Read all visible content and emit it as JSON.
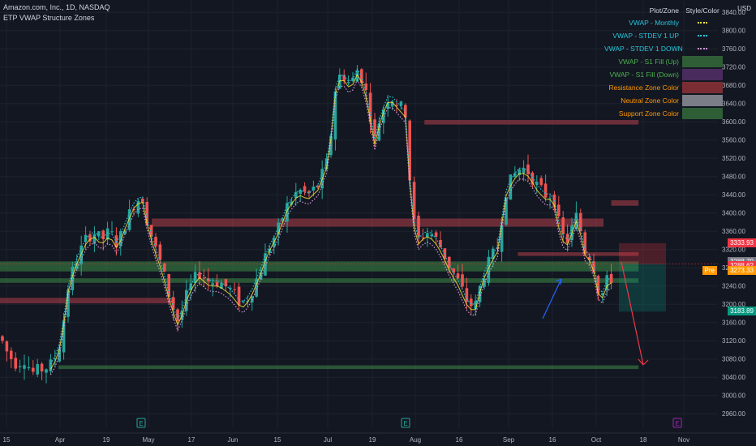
{
  "header": {
    "title": "Amazon.com, Inc., 1D, NASDAQ",
    "indicator": "ETP VWAP Structure Zones",
    "currency": "USD"
  },
  "legend": {
    "col_plot": "Plot/Zone",
    "col_style": "Style/Color",
    "rows": [
      {
        "label": "VWAP - Monthly",
        "color": "#26c6da",
        "swatch": "dots",
        "swatch_color": "#ffeb3b"
      },
      {
        "label": "VWAP - STDEV 1 UP",
        "color": "#26c6da",
        "swatch": "dots",
        "swatch_color": "#26c6da"
      },
      {
        "label": "VWAP - STDEV 1 DOWN",
        "color": "#26c6da",
        "swatch": "dots",
        "swatch_color": "#ce93d8"
      },
      {
        "label": "VWAP - S1 Fill (Up)",
        "color": "#4caf50",
        "swatch": "box",
        "swatch_color": "#2e5d36"
      },
      {
        "label": "VWAP - S1 Fill (Down)",
        "color": "#4caf50",
        "swatch": "box",
        "swatch_color": "#4a2b5e"
      },
      {
        "label": "Resistance Zone Color",
        "color": "#ff9800",
        "swatch": "box",
        "swatch_color": "#7a2e34"
      },
      {
        "label": "Neutral Zone Color",
        "color": "#ff9800",
        "swatch": "box",
        "swatch_color": "#7b7e87"
      },
      {
        "label": "Support Zone Color",
        "color": "#ff9800",
        "swatch": "box",
        "swatch_color": "#2e5d36"
      }
    ]
  },
  "y_axis": {
    "ticks": [
      "3840.00",
      "3800.00",
      "3760.00",
      "3720.00",
      "3680.00",
      "3640.00",
      "3600.00",
      "3560.00",
      "3520.00",
      "3480.00",
      "3440.00",
      "3400.00",
      "3360.00",
      "3320.00",
      "3280.00",
      "3240.00",
      "3200.00",
      "3160.00",
      "3120.00",
      "3080.00",
      "3040.00",
      "3000.00",
      "2960.00"
    ]
  },
  "x_axis": {
    "ticks": [
      "15",
      "Apr",
      "19",
      "May",
      "17",
      "Jun",
      "15",
      "Jul",
      "19",
      "Aug",
      "16",
      "Sep",
      "16",
      "Oct",
      "18",
      "Nov"
    ]
  },
  "price_labels": [
    {
      "text": "3333.93",
      "value": 3333.93,
      "color": "#f23645"
    },
    {
      "text": "3288.70",
      "value": 3288.7,
      "color": "#787b86"
    },
    {
      "text": "3288.62",
      "value": 3288.62,
      "color": "#f23645"
    },
    {
      "text": "3273.33",
      "value": 3273.33,
      "color": "#ff9800"
    },
    {
      "text": "3183.89",
      "value": 3183.89,
      "color": "#089981"
    }
  ],
  "pre_label": "Pre",
  "earnings_markers": [
    "E",
    "E",
    "E"
  ],
  "colors": {
    "background": "#131722",
    "up": "#26a69a",
    "down": "#ef5350",
    "vwap": "#ffeb3b",
    "resistance": "#b2404b",
    "support": "#3d8b45",
    "arrow_blue": "#2962ff",
    "arrow_red": "#f23645"
  },
  "chart_data": {
    "type": "candlestick",
    "ylim": [
      2940,
      3860
    ],
    "zones": [
      {
        "kind": "resistance",
        "x0": 0.545,
        "x1": 0.82,
        "low": 3594,
        "high": 3604
      },
      {
        "kind": "resistance",
        "x0": 0.785,
        "x1": 0.82,
        "low": 3416,
        "high": 3428
      },
      {
        "kind": "resistance",
        "x0": 0.195,
        "x1": 0.775,
        "low": 3370,
        "high": 3388
      },
      {
        "kind": "resistance",
        "x0": 0.0,
        "x1": 0.225,
        "low": 3202,
        "high": 3214
      },
      {
        "kind": "resistance",
        "x0": 0.665,
        "x1": 0.82,
        "low": 3306,
        "high": 3314
      },
      {
        "kind": "support",
        "x0": 0.0,
        "x1": 0.82,
        "low": 3272,
        "high": 3294
      },
      {
        "kind": "support",
        "x0": 0.0,
        "x1": 0.82,
        "low": 3247,
        "high": 3257
      },
      {
        "kind": "support",
        "x0": 0.075,
        "x1": 0.82,
        "low": 3058,
        "high": 3066
      }
    ],
    "projection": {
      "entry": 3288.62,
      "stop": 3333.93,
      "target": 3183.89
    }
  }
}
